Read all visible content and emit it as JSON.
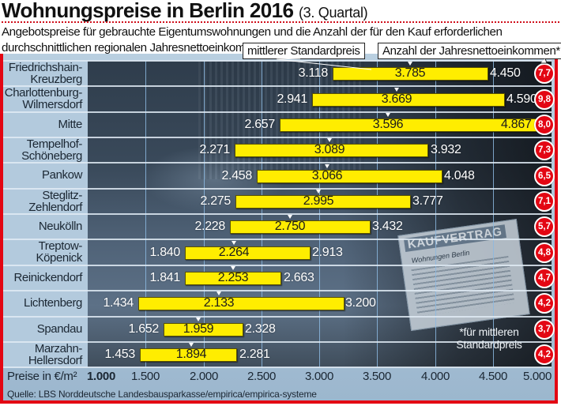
{
  "header": {
    "title": "Wohnungspreise in Berlin 2016",
    "title_suffix": "(3. Quartal)",
    "subtitle": "Angebotspreise für gebrauchte Eigentumswohnungen und die Anzahl der für den Kauf erforderlichen durchschnittlichen regionalen Jahresnettoeinkommen"
  },
  "legend": {
    "median_label": "mittlerer Standardpreis",
    "income_label": "Anzahl der Jahresnettoeinkommen*"
  },
  "background_photo": {
    "contract_heading": "KAUFVERTRAG",
    "contract_subheading": "Wohnungen Berlin"
  },
  "footnote": "*für mittleren Standardpreis",
  "source": "Quelle: LBS Norddeutsche Landesbausparkasse/empirica/empirica-systeme",
  "colors": {
    "bar": "#ffed00",
    "accent_red": "#e30613",
    "label_column": "#b3cadd"
  },
  "chart_data": {
    "type": "bar",
    "orientation": "horizontal-range",
    "title": "Wohnungspreise in Berlin 2016 (3. Quartal)",
    "xlabel": "Preise in €/m²",
    "xlim": [
      1000,
      5000
    ],
    "xticks": [
      1000,
      1500,
      2000,
      2500,
      3000,
      3500,
      4000,
      4500,
      5000
    ],
    "xtick_labels": [
      "1.000",
      "1.500",
      "2.000",
      "2.500",
      "3.000",
      "3.500",
      "4.000",
      "4.500",
      "5.000"
    ],
    "grid": true,
    "legend_position": "top-right",
    "categories": [
      "Friedrichshain-Kreuzberg",
      "Charlottenburg-Wilmersdorf",
      "Mitte",
      "Tempelhof-Schöneberg",
      "Pankow",
      "Steglitz-Zehlendorf",
      "Neukölln",
      "Treptow-Köpenick",
      "Reinickendorf",
      "Lichtenberg",
      "Spandau",
      "Marzahn-Hellersdorf"
    ],
    "category_lines": [
      [
        "Friedrichshain-",
        "Kreuzberg"
      ],
      [
        "Charlottenburg-",
        "Wilmersdorf"
      ],
      [
        "Mitte"
      ],
      [
        "Tempelhof-",
        "Schöneberg"
      ],
      [
        "Pankow"
      ],
      [
        "Steglitz-",
        "Zehlendorf"
      ],
      [
        "Neukölln"
      ],
      [
        "Treptow-",
        "Köpenick"
      ],
      [
        "Reinickendorf"
      ],
      [
        "Lichtenberg"
      ],
      [
        "Spandau"
      ],
      [
        "Marzahn-",
        "Hellersdorf"
      ]
    ],
    "series": [
      {
        "name": "min",
        "values": [
          3118,
          2941,
          2657,
          2271,
          2458,
          2275,
          2228,
          1840,
          1841,
          1434,
          1652,
          1453
        ],
        "labels": [
          "3.118",
          "2.941",
          "2.657",
          "2.271",
          "2.458",
          "2.275",
          "2.228",
          "1.840",
          "1.841",
          "1.434",
          "1.652",
          "1.453"
        ]
      },
      {
        "name": "mittlerer Standardpreis",
        "values": [
          3785,
          3669,
          3596,
          3089,
          3066,
          2995,
          2750,
          2264,
          2253,
          2133,
          1959,
          1894
        ],
        "labels": [
          "3.785",
          "3.669",
          "3.596",
          "3.089",
          "3.066",
          "2.995",
          "2.750",
          "2.264",
          "2.253",
          "2.133",
          "1.959",
          "1.894"
        ]
      },
      {
        "name": "max",
        "values": [
          4450,
          4590,
          4867,
          3932,
          4048,
          3777,
          3432,
          2913,
          2663,
          3200,
          2328,
          2281
        ],
        "labels": [
          "4.450",
          "4.590",
          "4.867",
          "3.932",
          "4.048",
          "3.777",
          "3.432",
          "2.913",
          "2.663",
          "3.200",
          "2.328",
          "2.281"
        ]
      },
      {
        "name": "Anzahl der Jahresnettoeinkommen*",
        "values": [
          7.7,
          9.8,
          8.0,
          7.3,
          6.5,
          7.1,
          5.7,
          4.8,
          4.7,
          4.2,
          3.7,
          4.2
        ],
        "labels": [
          "7,7",
          "9,8",
          "8,0",
          "7,3",
          "6,5",
          "7,1",
          "5,7",
          "4,8",
          "4,7",
          "4,2",
          "3,7",
          "4,2"
        ]
      }
    ]
  }
}
